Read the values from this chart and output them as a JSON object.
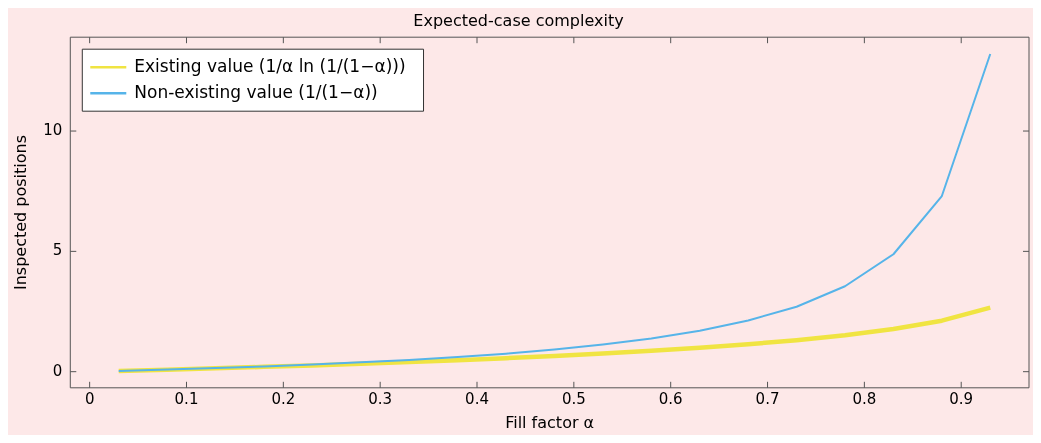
{
  "chart_data": {
    "type": "line",
    "title": "Expected-case complexity",
    "xlabel": "Fill factor α",
    "ylabel": "Inspected positions",
    "x": [
      0.03,
      0.08,
      0.13,
      0.18,
      0.23,
      0.28,
      0.33,
      0.38,
      0.43,
      0.48,
      0.53,
      0.58,
      0.63,
      0.68,
      0.73,
      0.78,
      0.83,
      0.88,
      0.93
    ],
    "series": [
      {
        "name": "Existing value (1/α ln (1/(1−α)))",
        "color": "#f0e442",
        "values": [
          0.03,
          0.08,
          0.14,
          0.2,
          0.26,
          0.33,
          0.4,
          0.48,
          0.56,
          0.65,
          0.76,
          0.87,
          0.99,
          1.14,
          1.31,
          1.51,
          1.77,
          2.12,
          2.66
        ]
      },
      {
        "name": "Non-existing value (1/(1−α))",
        "color": "#56b4e9",
        "values": [
          0.03,
          0.09,
          0.15,
          0.22,
          0.3,
          0.39,
          0.49,
          0.61,
          0.75,
          0.92,
          1.13,
          1.38,
          1.7,
          2.13,
          2.7,
          3.55,
          4.88,
          7.3,
          13.2
        ]
      }
    ],
    "xlim": [
      -0.02,
      0.97
    ],
    "xticks": [
      0,
      0.1,
      0.2,
      0.3,
      0.4,
      0.5,
      0.6,
      0.7,
      0.8,
      0.9
    ],
    "ylim": [
      -0.67,
      13.9
    ],
    "yticks": [
      0,
      5,
      10
    ],
    "legend": "top left",
    "marker": "none",
    "line_style": "solid"
  }
}
